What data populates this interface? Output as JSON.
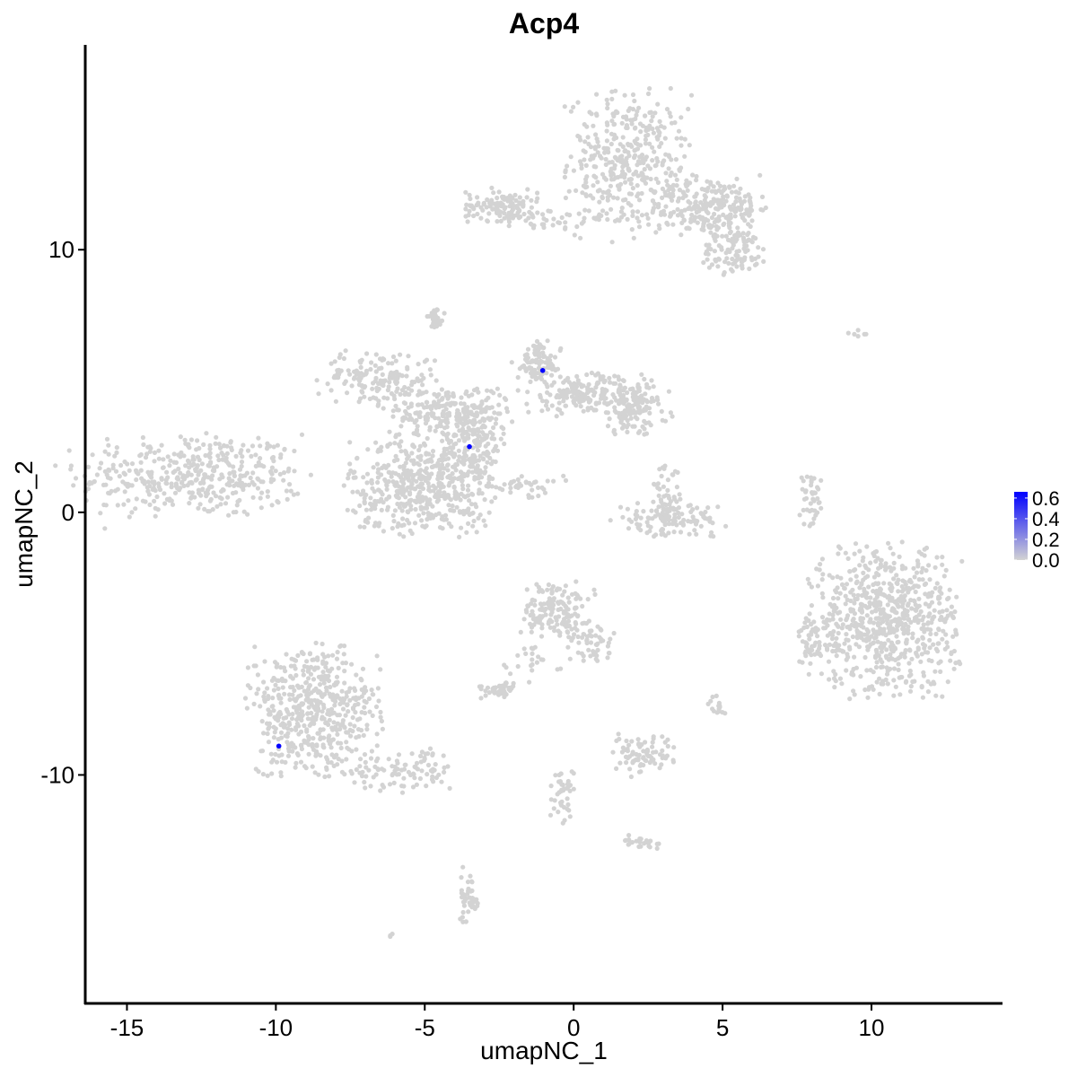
{
  "chart_data": {
    "type": "scatter",
    "title": "Acp4",
    "xlabel": "umapNC_1",
    "ylabel": "umapNC_2",
    "xlim": [
      -16.4,
      14.4
    ],
    "ylim": [
      -18.7,
      17.8
    ],
    "xticks": [
      -15,
      -10,
      -5,
      0,
      5,
      10
    ],
    "xtick_labels": [
      "-15",
      "-10",
      "-5",
      "0",
      "5",
      "10"
    ],
    "yticks": [
      -10,
      0,
      10
    ],
    "ytick_labels": [
      "-10",
      "0",
      "10"
    ],
    "grid": false,
    "legend": {
      "placement": "right",
      "type": "colorbar",
      "ticks": [
        0.0,
        0.2,
        0.4,
        0.6
      ],
      "tick_labels": [
        "0.0",
        "0.2",
        "0.4",
        "0.6"
      ],
      "range": [
        0,
        0.66
      ],
      "low_color": "#d3d3d3",
      "high_color": "#0000ff"
    },
    "background_point_color": "#d3d3d3",
    "background_value": 0,
    "clusters": [
      {
        "x": -12.8,
        "y": 1.4,
        "sx": 1.9,
        "sy": 0.8,
        "n": 420
      },
      {
        "x": 1.8,
        "y": 13.3,
        "sx": 1.0,
        "sy": 1.3,
        "n": 380
      },
      {
        "x": 4.6,
        "y": 11.6,
        "sx": 1.0,
        "sy": 0.6,
        "n": 260
      },
      {
        "x": 5.4,
        "y": 9.9,
        "sx": 0.6,
        "sy": 0.4,
        "n": 90
      },
      {
        "x": -2.4,
        "y": 11.7,
        "sx": 0.6,
        "sy": 0.3,
        "n": 120
      },
      {
        "x": -0.6,
        "y": 11.2,
        "sx": 0.9,
        "sy": 0.2,
        "n": 40
      },
      {
        "x": -6.6,
        "y": 5.1,
        "sx": 1.0,
        "sy": 0.5,
        "n": 160
      },
      {
        "x": -4.2,
        "y": 3.8,
        "sx": 1.0,
        "sy": 0.5,
        "n": 220
      },
      {
        "x": -5.1,
        "y": 1.0,
        "sx": 1.2,
        "sy": 0.9,
        "n": 480
      },
      {
        "x": -3.4,
        "y": 2.6,
        "sx": 0.5,
        "sy": 0.8,
        "n": 160
      },
      {
        "x": 0.3,
        "y": 4.5,
        "sx": 1.0,
        "sy": 0.4,
        "n": 180
      },
      {
        "x": 2.0,
        "y": 4.0,
        "sx": 0.6,
        "sy": 0.5,
        "n": 140
      },
      {
        "x": -1.2,
        "y": 5.7,
        "sx": 0.4,
        "sy": 0.4,
        "n": 90
      },
      {
        "x": -4.6,
        "y": 7.4,
        "sx": 0.15,
        "sy": 0.2,
        "n": 25
      },
      {
        "x": -1.8,
        "y": 1.0,
        "sx": 0.7,
        "sy": 0.2,
        "n": 40
      },
      {
        "x": 3.2,
        "y": -0.3,
        "sx": 0.9,
        "sy": 0.3,
        "n": 120
      },
      {
        "x": 3.1,
        "y": 0.7,
        "sx": 0.3,
        "sy": 0.5,
        "n": 40
      },
      {
        "x": 8.0,
        "y": 0.4,
        "sx": 0.2,
        "sy": 0.5,
        "n": 40
      },
      {
        "x": 10.5,
        "y": -4.1,
        "sx": 1.2,
        "sy": 1.4,
        "n": 700
      },
      {
        "x": 8.0,
        "y": -4.9,
        "sx": 0.25,
        "sy": 0.5,
        "n": 50
      },
      {
        "x": -8.7,
        "y": -7.6,
        "sx": 1.1,
        "sy": 1.2,
        "n": 520
      },
      {
        "x": -5.6,
        "y": -9.8,
        "sx": 0.9,
        "sy": 0.4,
        "n": 90
      },
      {
        "x": -0.6,
        "y": -3.7,
        "sx": 0.6,
        "sy": 0.5,
        "n": 150
      },
      {
        "x": 0.5,
        "y": -5.0,
        "sx": 0.4,
        "sy": 0.4,
        "n": 50
      },
      {
        "x": -1.5,
        "y": -5.6,
        "sx": 0.5,
        "sy": 0.5,
        "n": 25
      },
      {
        "x": -2.5,
        "y": -6.8,
        "sx": 0.3,
        "sy": 0.15,
        "n": 45
      },
      {
        "x": 2.3,
        "y": -9.2,
        "sx": 0.5,
        "sy": 0.4,
        "n": 80
      },
      {
        "x": 4.8,
        "y": -7.3,
        "sx": 0.15,
        "sy": 0.2,
        "n": 15
      },
      {
        "x": -0.4,
        "y": -10.8,
        "sx": 0.2,
        "sy": 0.6,
        "n": 45
      },
      {
        "x": 2.3,
        "y": -12.6,
        "sx": 0.3,
        "sy": 0.15,
        "n": 25
      },
      {
        "x": -3.5,
        "y": -14.6,
        "sx": 0.15,
        "sy": 0.5,
        "n": 45
      },
      {
        "x": -6.1,
        "y": -16.1,
        "sx": 0.05,
        "sy": 0.05,
        "n": 3
      },
      {
        "x": 9.6,
        "y": 6.8,
        "sx": 0.3,
        "sy": 0.1,
        "n": 6
      }
    ],
    "highlighted_points": [
      {
        "x": -1.04,
        "y": 5.4,
        "value": 0.66
      },
      {
        "x": -3.5,
        "y": 2.5,
        "value": 0.66
      },
      {
        "x": -9.9,
        "y": -8.9,
        "value": 0.66
      }
    ]
  }
}
